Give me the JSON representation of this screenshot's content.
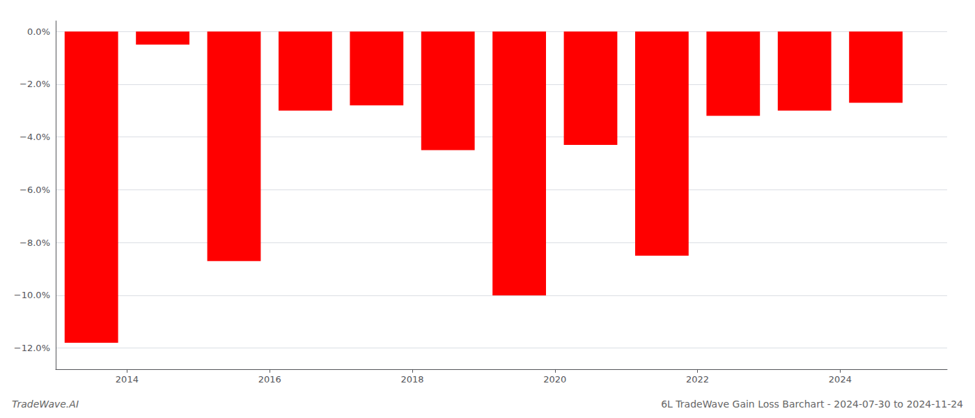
{
  "chart_data": {
    "type": "bar",
    "title": "6L TradeWave Gain Loss Barchart - 2024-07-30 to 2024-11-24",
    "annotations": [
      "TradeWave.AI"
    ],
    "x": [
      2013.5,
      2014.5,
      2015.5,
      2016.5,
      2017.5,
      2018.5,
      2019.5,
      2020.5,
      2021.5,
      2022.5,
      2023.5,
      2024.5
    ],
    "values": [
      -11.8,
      -0.5,
      -8.7,
      -3.0,
      -2.8,
      -4.5,
      -10.0,
      -4.3,
      -8.5,
      -3.2,
      -3.0,
      -2.7
    ],
    "color": "#ff0000",
    "xlim": [
      2013.0,
      2025.5
    ],
    "xticks": [
      2014,
      2016,
      2018,
      2020,
      2022,
      2024
    ],
    "ylim": [
      -12.8,
      0.4
    ],
    "yticks": [
      {
        "value": 0.0,
        "label": "0.0%"
      },
      {
        "value": -2.0,
        "label": "−2.0%"
      },
      {
        "value": -4.0,
        "label": "−4.0%"
      },
      {
        "value": -6.0,
        "label": "−6.0%"
      },
      {
        "value": -8.0,
        "label": "−8.0%"
      },
      {
        "value": -10.0,
        "label": "−10.0%"
      },
      {
        "value": -12.0,
        "label": "−12.0%"
      }
    ],
    "grid": true
  }
}
